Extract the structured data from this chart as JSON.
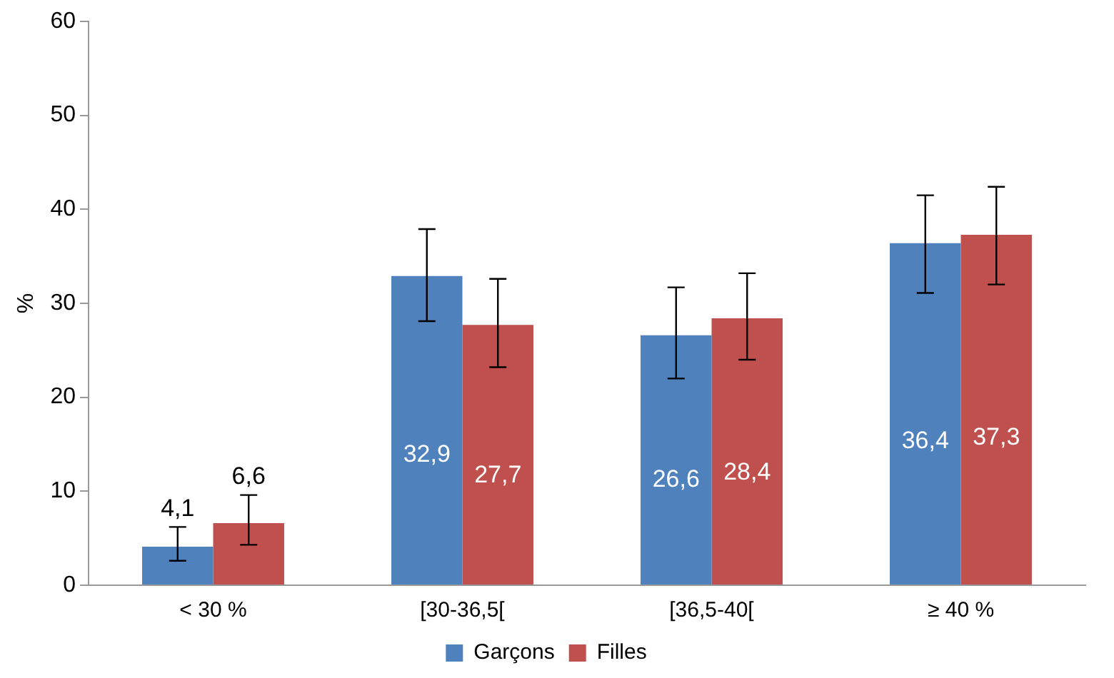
{
  "chart_data": {
    "type": "bar",
    "ylabel": "%",
    "categories": [
      "< 30 %",
      "[30-36,5[",
      "[36,5-40[",
      "≥ 40 %"
    ],
    "series": [
      {
        "name": "Garçons",
        "color": "#4f81bd",
        "values": [
          4.1,
          32.9,
          26.6,
          36.4
        ],
        "value_labels": [
          "4,1",
          "32,9",
          "26,6",
          "36,4"
        ],
        "errors": [
          [
            2.6,
            6.2
          ],
          [
            28.1,
            37.9
          ],
          [
            22.0,
            31.7
          ],
          [
            31.1,
            41.5
          ]
        ]
      },
      {
        "name": "Filles",
        "color": "#c0504d",
        "values": [
          6.6,
          27.7,
          28.4,
          37.3
        ],
        "value_labels": [
          "6,6",
          "27,7",
          "28,4",
          "37,3"
        ],
        "errors": [
          [
            4.3,
            9.6
          ],
          [
            23.2,
            32.6
          ],
          [
            24.0,
            33.2
          ],
          [
            32.0,
            42.4
          ]
        ]
      }
    ],
    "ylim": [
      0,
      60
    ],
    "yticks": [
      0,
      10,
      20,
      30,
      40,
      50,
      60
    ],
    "grid": false,
    "legend": "bottom"
  }
}
